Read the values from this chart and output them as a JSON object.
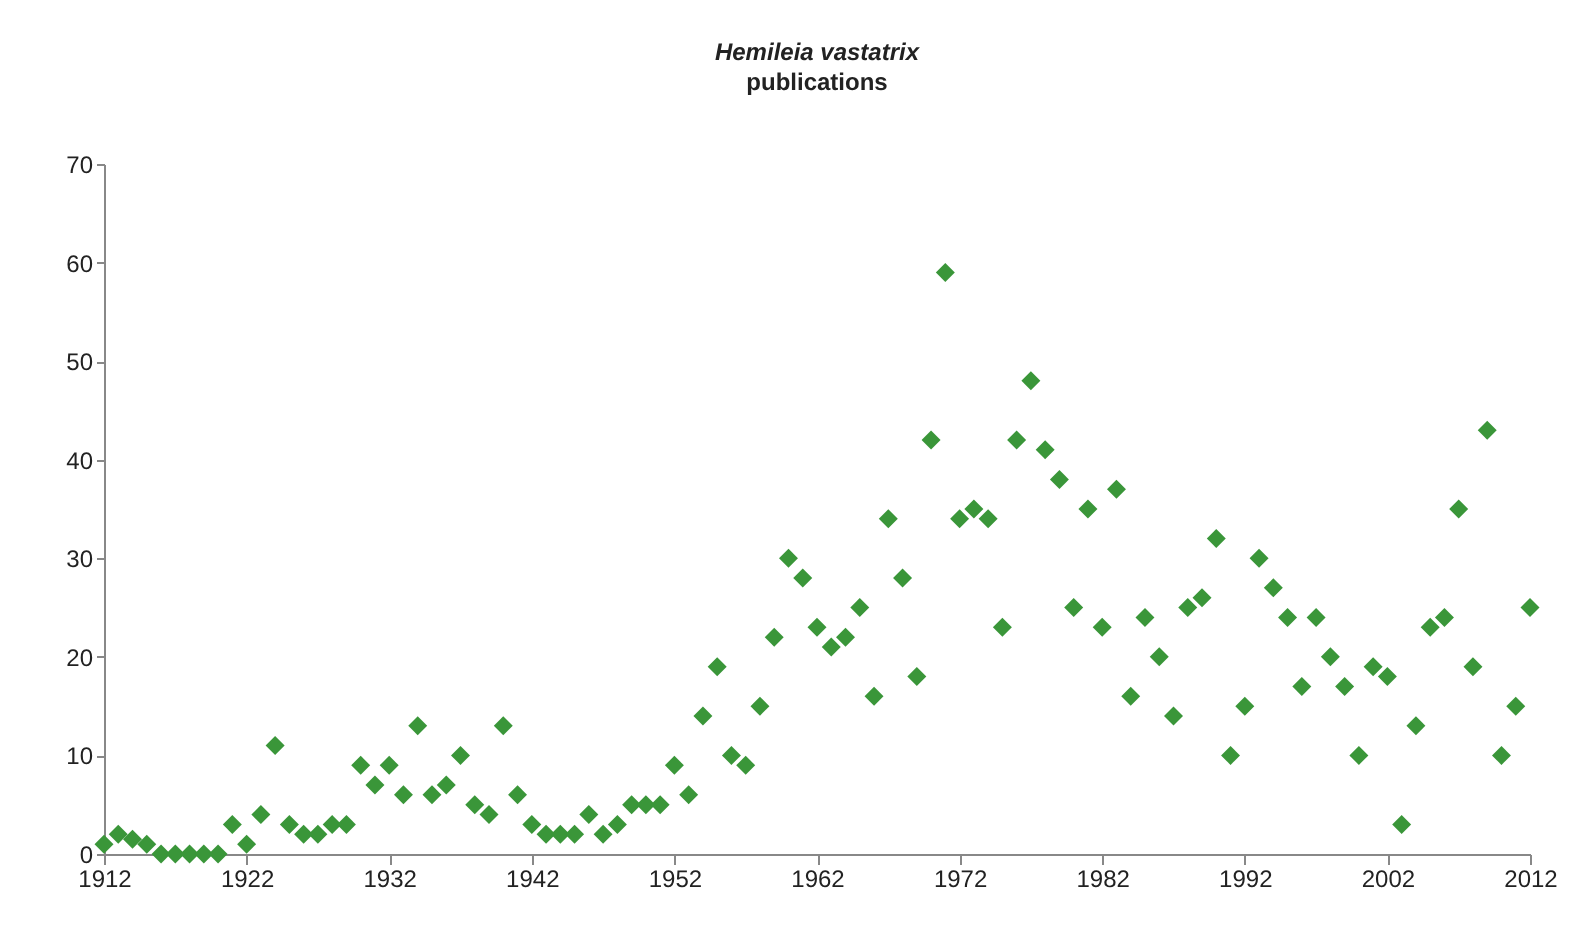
{
  "chart_data": {
    "type": "scatter",
    "title": "Hemileia vastatrix",
    "subtitle": "publications",
    "x": [
      1912,
      1913,
      1914,
      1915,
      1916,
      1917,
      1918,
      1919,
      1920,
      1921,
      1922,
      1923,
      1924,
      1925,
      1926,
      1927,
      1928,
      1929,
      1930,
      1931,
      1932,
      1933,
      1934,
      1935,
      1936,
      1937,
      1938,
      1939,
      1940,
      1941,
      1942,
      1943,
      1944,
      1945,
      1946,
      1947,
      1948,
      1949,
      1950,
      1951,
      1952,
      1953,
      1954,
      1955,
      1956,
      1957,
      1958,
      1959,
      1960,
      1961,
      1962,
      1963,
      1964,
      1965,
      1966,
      1967,
      1968,
      1969,
      1970,
      1971,
      1972,
      1973,
      1974,
      1975,
      1976,
      1977,
      1978,
      1979,
      1980,
      1981,
      1982,
      1983,
      1984,
      1985,
      1986,
      1987,
      1988,
      1989,
      1990,
      1991,
      1992,
      1993,
      1994,
      1995,
      1996,
      1997,
      1998,
      1999,
      2000,
      2001,
      2002,
      2003,
      2004,
      2005,
      2006,
      2007,
      2008,
      2009,
      2010,
      2011,
      2012
    ],
    "series": [
      {
        "color": "#3a9639",
        "values": [
          1,
          2,
          1.5,
          1,
          0,
          0,
          0,
          0,
          0,
          3,
          1,
          4,
          11,
          3,
          2,
          2,
          3,
          3,
          9,
          7,
          9,
          6,
          13,
          6,
          7,
          10,
          5,
          4,
          13,
          6,
          3,
          2,
          2,
          2,
          4,
          2,
          3,
          5,
          5,
          5,
          9,
          6,
          14,
          19,
          10,
          9,
          15,
          22,
          30,
          28,
          23,
          21,
          22,
          25,
          16,
          34,
          28,
          18,
          42,
          59,
          34,
          35,
          34,
          23,
          42,
          48,
          41,
          38,
          25,
          35,
          23,
          37,
          16,
          24,
          20,
          14,
          25,
          26,
          32,
          10,
          15,
          30,
          27,
          24,
          17,
          24,
          20,
          17,
          10,
          19,
          18,
          3,
          13,
          23,
          24,
          35,
          19,
          43,
          10,
          15,
          25
        ]
      }
    ],
    "xlim": [
      1912,
      2012
    ],
    "xticks": [
      1912,
      1922,
      1932,
      1942,
      1952,
      1962,
      1972,
      1982,
      1992,
      2002,
      2012
    ],
    "ylim": [
      0,
      70
    ],
    "yticks": [
      0,
      10,
      20,
      30,
      40,
      50,
      60,
      70
    ],
    "grid": false,
    "legend": false,
    "marker": "diamond"
  }
}
